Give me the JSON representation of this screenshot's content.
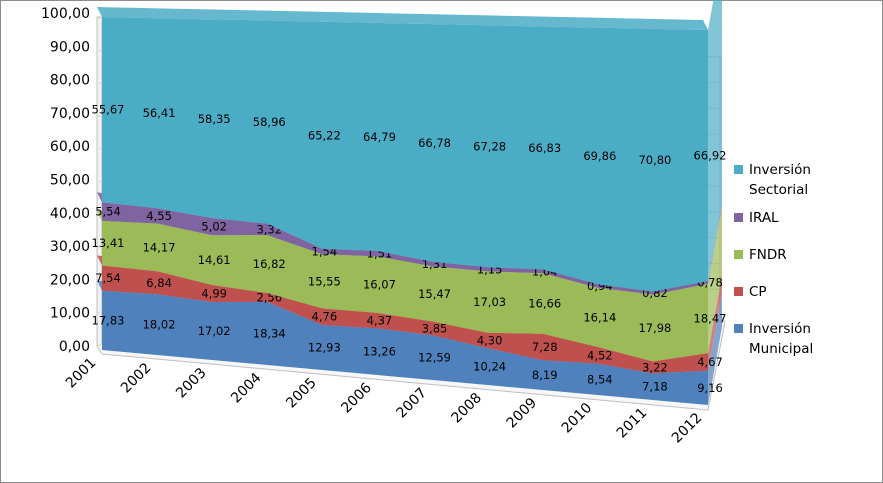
{
  "chart_data": {
    "type": "area",
    "stacked": true,
    "three_d": true,
    "categories": [
      "2001",
      "2002",
      "2003",
      "2004",
      "2005",
      "2006",
      "2007",
      "2008",
      "2009",
      "2010",
      "2011",
      "2012"
    ],
    "y_ticks": [
      "0,00",
      "10,00",
      "20,00",
      "30,00",
      "40,00",
      "50,00",
      "60,00",
      "70,00",
      "80,00",
      "90,00",
      "100,00"
    ],
    "ylim": [
      0,
      100
    ],
    "legend_position": "right",
    "series": [
      {
        "name": "Inversión Municipal",
        "color": "#4f81bd",
        "values": [
          17.83,
          18.02,
          17.02,
          18.34,
          12.93,
          13.26,
          12.59,
          10.24,
          8.19,
          8.54,
          7.18,
          9.16
        ],
        "labels": [
          "17,83",
          "18,02",
          "17,02",
          "18,34",
          "12,93",
          "13,26",
          "12,59",
          "10,24",
          "8,19",
          "8,54",
          "7,18",
          "9,16"
        ]
      },
      {
        "name": "CP",
        "color": "#c0504d",
        "values": [
          7.54,
          6.84,
          4.99,
          2.56,
          4.76,
          4.37,
          3.85,
          4.3,
          7.28,
          4.52,
          3.22,
          4.67
        ],
        "labels": [
          "7,54",
          "6,84",
          "4,99",
          "2,56",
          "4,76",
          "4,37",
          "3,85",
          "4,30",
          "7,28",
          "4,52",
          "3,22",
          "4,67"
        ]
      },
      {
        "name": "FNDR",
        "color": "#9bbb59",
        "values": [
          13.41,
          14.17,
          14.61,
          16.82,
          15.55,
          16.07,
          15.47,
          17.03,
          16.66,
          16.14,
          17.98,
          18.47
        ],
        "labels": [
          "13,41",
          "14,17",
          "14,61",
          "16,82",
          "15,55",
          "16,07",
          "15,47",
          "17,03",
          "16,66",
          "16,14",
          "17,98",
          "18,47"
        ]
      },
      {
        "name": "IRAL",
        "color": "#8064a2",
        "values": [
          5.54,
          4.55,
          5.02,
          3.32,
          1.54,
          1.51,
          1.31,
          1.15,
          1.04,
          0.94,
          0.82,
          0.78
        ],
        "labels": [
          "5,54",
          "4,55",
          "5,02",
          "3,32",
          "1,54",
          "1,51",
          "1,31",
          "1,15",
          "1,04",
          "0,94",
          "0,82",
          "0,78"
        ]
      },
      {
        "name": "Inversión Sectorial",
        "color": "#4bacc6",
        "values": [
          55.67,
          56.41,
          58.35,
          58.96,
          65.22,
          64.79,
          66.78,
          67.28,
          66.83,
          69.86,
          70.8,
          66.92
        ],
        "labels": [
          "55,67",
          "56,41",
          "58,35",
          "58,96",
          "65,22",
          "64,79",
          "66,78",
          "67,28",
          "66,83",
          "69,86",
          "70,80",
          "66,92"
        ]
      }
    ],
    "legend": [
      {
        "label": "Inversión\nSectorial",
        "color": "#4bacc6"
      },
      {
        "label": "IRAL",
        "color": "#8064a2"
      },
      {
        "label": "FNDR",
        "color": "#9bbb59"
      },
      {
        "label": "CP",
        "color": "#c0504d"
      },
      {
        "label": "Inversión\nMunicipal",
        "color": "#4f81bd"
      }
    ]
  }
}
